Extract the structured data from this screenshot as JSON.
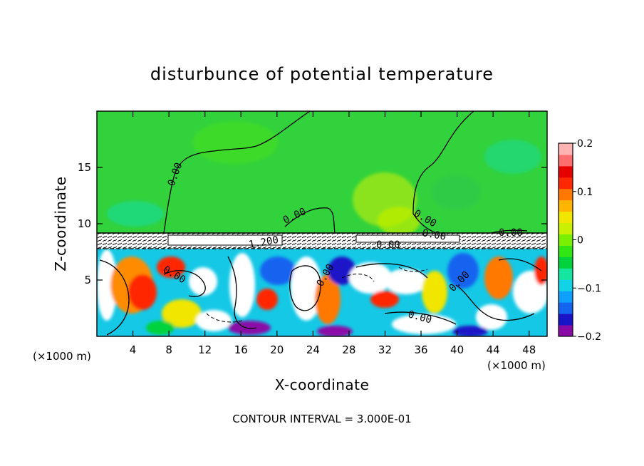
{
  "chart_data": {
    "type": "heatmap",
    "title": "disturbunce of potential temperature",
    "xlabel": "X-coordinate",
    "ylabel": "Z-coordinate",
    "x_unit": "(×1000 m)",
    "z_unit": "(×1000 m)",
    "xlim": [
      0,
      50
    ],
    "zlim": [
      0,
      20
    ],
    "xticks": [
      4,
      8,
      12,
      16,
      20,
      24,
      28,
      32,
      36,
      40,
      44,
      48
    ],
    "zticks": [
      5,
      10,
      15
    ],
    "colorbar": {
      "range": [
        -0.2,
        0.2
      ],
      "tick_values": [
        0.2,
        0.1,
        0,
        -0.1,
        -0.2
      ],
      "tick_labels": [
        "0.2",
        "0.1",
        "0",
        "−0.1",
        "−0.2"
      ],
      "colors": [
        "#8a0aa8",
        "#1a14c8",
        "#1464f0",
        "#0fa0ff",
        "#14d2e6",
        "#14e6a0",
        "#00d23c",
        "#32e614",
        "#78f000",
        "#c8f000",
        "#f0e600",
        "#ffb400",
        "#ff7800",
        "#ff2800",
        "#e60000",
        "#ff6e6e",
        "#ffb4b4"
      ]
    },
    "contour_labels": [
      "0.00",
      "0.00",
      "0.00",
      "0.00",
      "0.00",
      "0.00",
      "0.00",
      "0.00",
      "0.00",
      "0.00",
      "1.200"
    ],
    "contour_interval_text": "CONTOUR INTERVAL = 3.000E-01"
  }
}
